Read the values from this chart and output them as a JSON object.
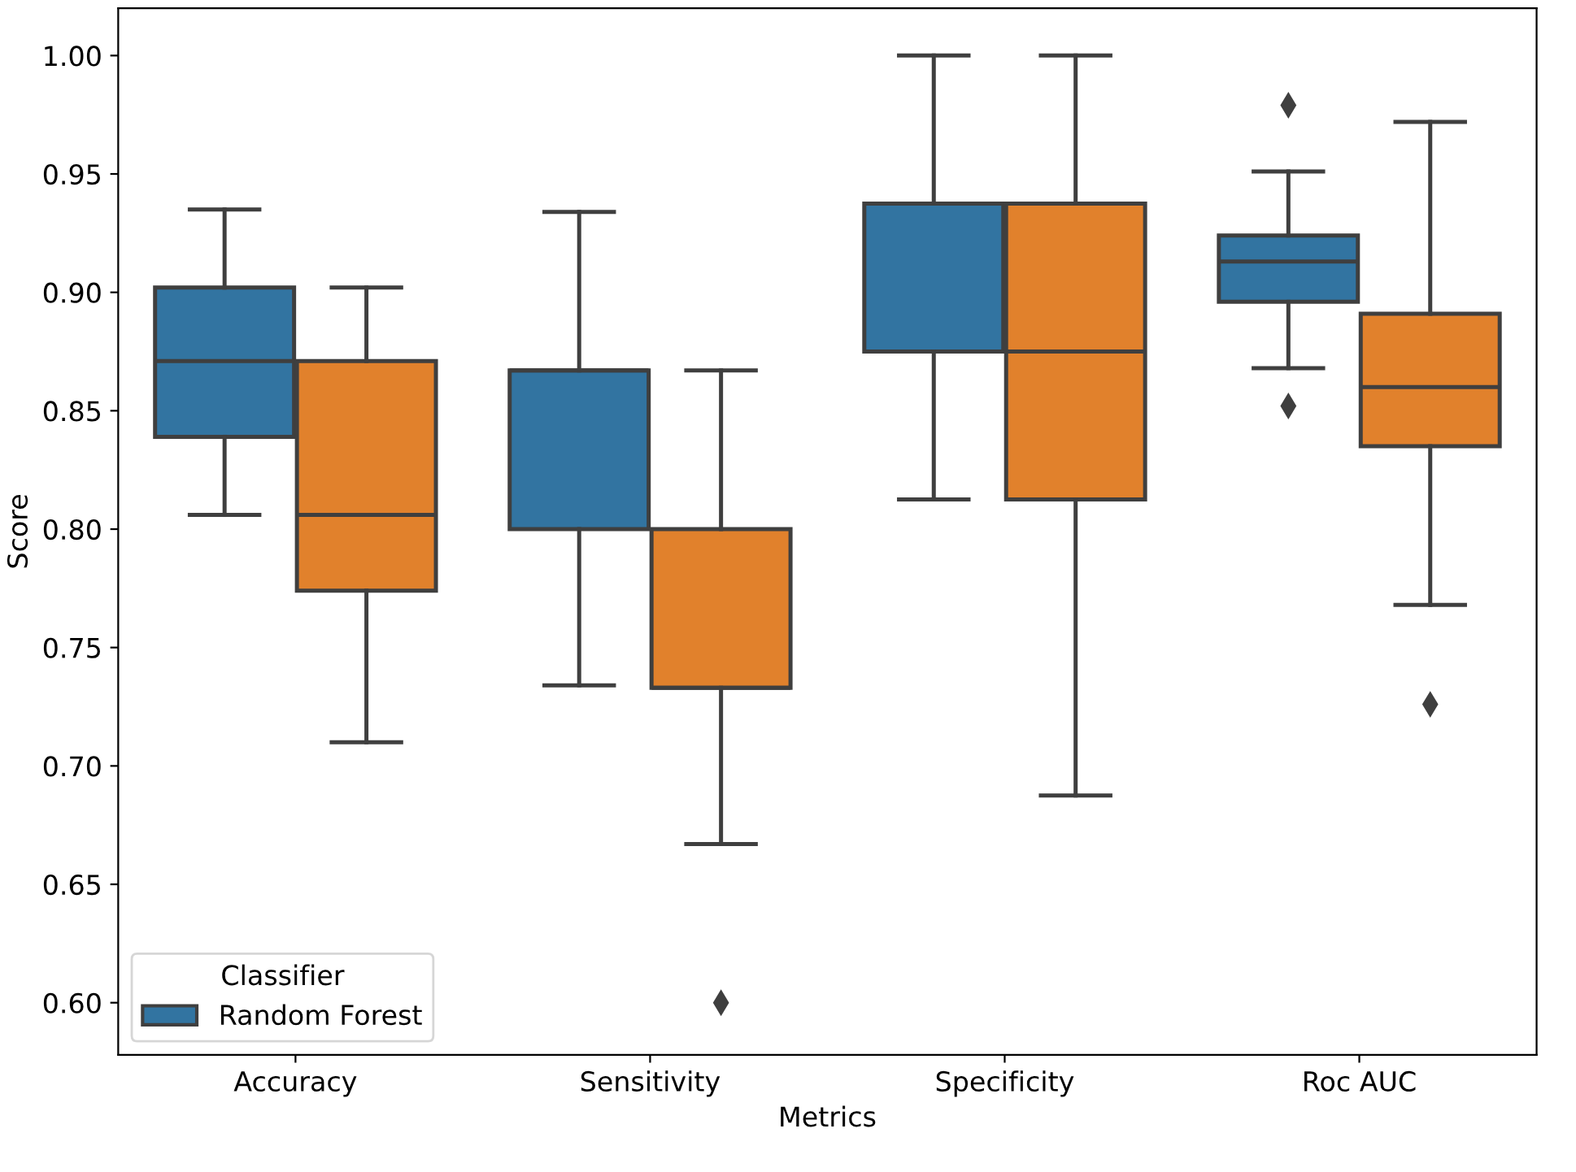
{
  "chart_data": {
    "type": "box",
    "xlabel": "Metrics",
    "ylabel": "Score",
    "legend_title": "Classifier",
    "legend": "bottom left",
    "grid": false,
    "marker": "diamond",
    "categories": [
      "Accuracy",
      "Sensitivity",
      "Specificity",
      "Roc AUC"
    ],
    "ylim": [
      0.578,
      1.02
    ],
    "yticks": [
      {
        "value": 0.6,
        "label": "0.60"
      },
      {
        "value": 0.65,
        "label": "0.65"
      },
      {
        "value": 0.7,
        "label": "0.70"
      },
      {
        "value": 0.75,
        "label": "0.75"
      },
      {
        "value": 0.8,
        "label": "0.80"
      },
      {
        "value": 0.85,
        "label": "0.85"
      },
      {
        "value": 0.9,
        "label": "0.90"
      },
      {
        "value": 0.95,
        "label": "0.95"
      },
      {
        "value": 1.0,
        "label": "1.00"
      }
    ],
    "series": [
      {
        "name": "Random Forest",
        "color": "#3274a1",
        "boxes": [
          {
            "low": 0.806,
            "q1": 0.839,
            "median": 0.871,
            "q3": 0.902,
            "high": 0.935
          },
          {
            "low": 0.734,
            "q1": 0.8,
            "median": 0.867,
            "q3": 0.867,
            "high": 0.934
          },
          {
            "low": 0.8125,
            "q1": 0.875,
            "median": 0.9375,
            "q3": 0.9375,
            "high": 1.0
          },
          {
            "low": 0.868,
            "q1": 0.896,
            "median": 0.913,
            "q3": 0.924,
            "high": 0.951,
            "outliers": [
              0.979,
              0.852
            ]
          }
        ]
      },
      {
        "color": "#e1812c",
        "boxes": [
          {
            "low": 0.71,
            "q1": 0.774,
            "median": 0.806,
            "q3": 0.871,
            "high": 0.902
          },
          {
            "low": 0.667,
            "q1": 0.733,
            "median": 0.733,
            "q3": 0.8,
            "high": 0.867,
            "outliers": [
              0.6
            ]
          },
          {
            "low": 0.6875,
            "q1": 0.8125,
            "median": 0.875,
            "q3": 0.9375,
            "high": 1.0
          },
          {
            "low": 0.768,
            "q1": 0.835,
            "median": 0.86,
            "q3": 0.891,
            "high": 0.972,
            "outliers": [
              0.726
            ]
          }
        ]
      }
    ]
  }
}
